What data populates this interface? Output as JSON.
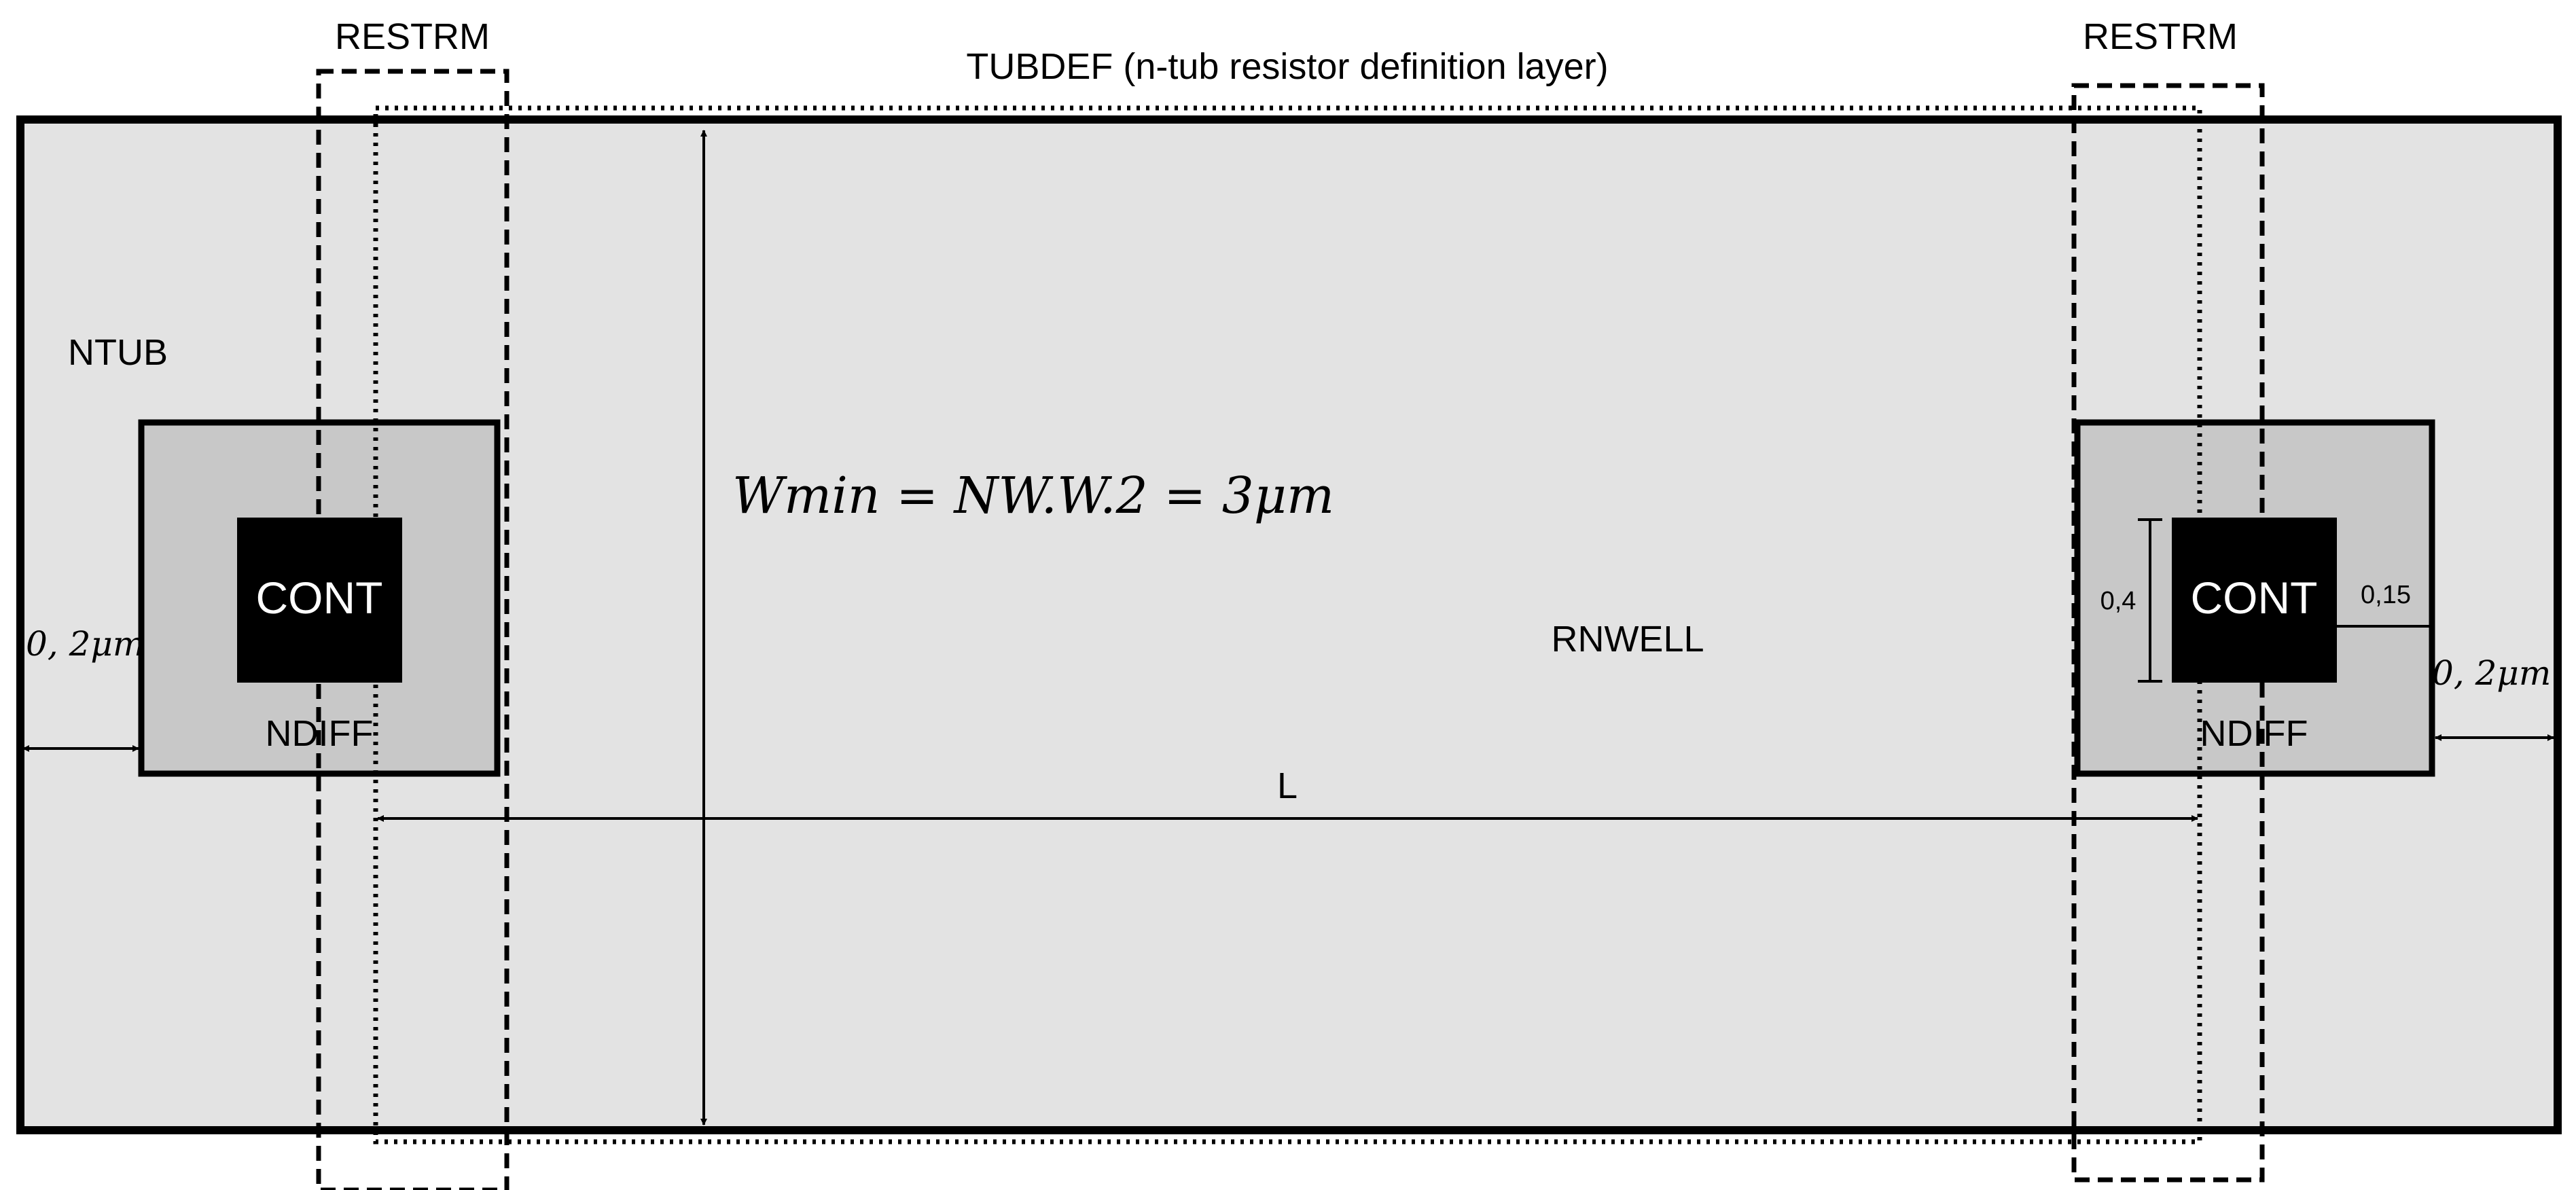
{
  "labels": {
    "restrm_left": "RESTRM",
    "restrm_right": "RESTRM",
    "tubdef": "TUBDEF (n-tub resistor definition layer)",
    "ntub": "NTUB",
    "rnwell": "RNWELL",
    "cont_left": "CONT",
    "cont_right": "CONT",
    "ndiff_left": "NDIFF",
    "ndiff_right": "NDIFF",
    "length": "L"
  },
  "dimensions": {
    "wmin_formula": "Wmin = NW.W.2 = 3μm",
    "edge_spacing_left": "0, 2μm",
    "edge_spacing_right": "0, 2μm",
    "cont_size": "0,4",
    "cont_enclosure": "0,15"
  },
  "colors": {
    "ntub_fill": "#e3e3e3",
    "ndiff_fill": "#c8c8c8",
    "cont_fill": "#000000",
    "outline": "#000000"
  }
}
